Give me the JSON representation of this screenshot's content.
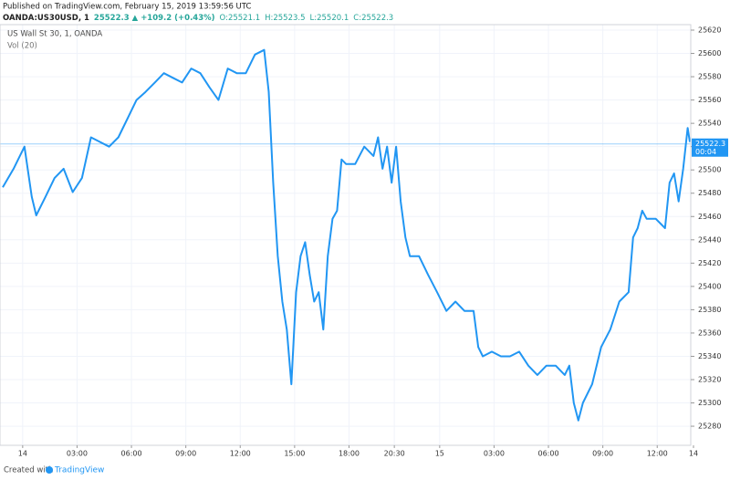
{
  "header": {
    "published": "Published on TradingView.com, February 15, 2019 13:59:56 UTC",
    "symbol": "OANDA:US30USD, 1",
    "last": "25522.3",
    "arrow": "▲",
    "change": "+109.2 (+0.43%)",
    "open": "O:25521.1",
    "high": "H:25523.5",
    "low": "L:25520.1",
    "close": "C:25522.3"
  },
  "legend": {
    "title": "US Wall St 30, 1, OANDA",
    "volume": "Vol (20)"
  },
  "footer": {
    "created": "Created with",
    "brand": "TradingView"
  },
  "chart_data": {
    "type": "line",
    "series": [
      {
        "name": "US Wall St 30",
        "color": "#2196f3",
        "x": [
          -1.1,
          -0.5,
          0.1,
          0.5,
          0.75,
          1.26,
          1.76,
          2.26,
          2.76,
          3.27,
          3.77,
          4.27,
          4.77,
          5.28,
          5.78,
          6.28,
          6.78,
          7.29,
          7.79,
          8.29,
          8.79,
          9.3,
          9.8,
          10.3,
          10.8,
          11.31,
          11.81,
          12.31,
          12.81,
          13.32,
          13.57,
          13.82,
          14.07,
          14.32,
          14.57,
          14.82,
          15.08,
          15.33,
          15.58,
          15.83,
          16.08,
          16.33,
          16.58,
          16.83,
          17.09,
          17.34,
          17.59,
          17.84,
          18.34,
          18.84,
          19.35,
          19.6,
          19.85,
          20.1,
          20.35,
          20.6,
          20.85,
          21.11,
          21.36,
          21.86,
          22.36,
          22.86,
          23.37,
          23.87,
          24.37,
          24.87,
          25.13,
          25.38,
          25.88,
          26.38,
          26.88,
          27.39,
          27.89,
          28.39,
          28.89,
          29.4,
          29.9,
          30.15,
          30.4,
          30.65,
          30.9,
          31.41,
          31.91,
          32.41,
          32.91,
          33.42,
          33.67,
          33.92,
          34.17,
          34.42,
          34.92,
          35.43,
          35.68,
          35.93,
          36.18,
          36.43,
          36.68,
          36.8
        ],
        "values": [
          25485,
          25501,
          25520,
          25477,
          25461,
          25477,
          25493,
          25501,
          25481,
          25493,
          25528,
          25524,
          25520,
          25528,
          25544,
          25560,
          25567,
          25575,
          25583,
          25579,
          25575,
          25587,
          25583,
          25571,
          25560,
          25587,
          25583,
          25583,
          25599,
          25603,
          25567,
          25489,
          25426,
          25387,
          25363,
          25316,
          25395,
          25426,
          25438,
          25410,
          25387,
          25395,
          25363,
          25426,
          25458,
          25465,
          25509,
          25505,
          25505,
          25520,
          25512,
          25528,
          25501,
          25520,
          25489,
          25520,
          25473,
          25442,
          25426,
          25426,
          25410,
          25395,
          25379,
          25387,
          25379,
          25379,
          25348,
          25340,
          25344,
          25340,
          25340,
          25344,
          25332,
          25324,
          25332,
          25332,
          25324,
          25332,
          25300,
          25285,
          25300,
          25316,
          25348,
          25363,
          25387,
          25395,
          25442,
          25450,
          25465,
          25458,
          25458,
          25450,
          25489,
          25497,
          25473,
          25501,
          25536,
          25524
        ]
      }
    ],
    "last_price": 25522.3,
    "countdown": "00:04",
    "xlim": [
      -1.25,
      36.85
    ],
    "xticks": [
      {
        "value": 0,
        "label": "14"
      },
      {
        "value": 3,
        "label": "03:00"
      },
      {
        "value": 6,
        "label": "06:00"
      },
      {
        "value": 9,
        "label": "09:00"
      },
      {
        "value": 12,
        "label": "12:00"
      },
      {
        "value": 15,
        "label": "15:00"
      },
      {
        "value": 18,
        "label": "18:00"
      },
      {
        "value": 20.5,
        "label": "20:30"
      },
      {
        "value": 23,
        "label": "15"
      },
      {
        "value": 26,
        "label": "03:00"
      },
      {
        "value": 29,
        "label": "06:00"
      },
      {
        "value": 32,
        "label": "09:00"
      },
      {
        "value": 35,
        "label": "12:00"
      },
      {
        "value": 37,
        "label": "14"
      }
    ],
    "ylim": [
      25263.6,
      25624.7
    ],
    "yticks": [
      25280,
      25300,
      25320,
      25340,
      25360,
      25380,
      25400,
      25420,
      25440,
      25460,
      25480,
      25500,
      25520,
      25540,
      25560,
      25580,
      25600,
      25620
    ],
    "grid": true
  }
}
